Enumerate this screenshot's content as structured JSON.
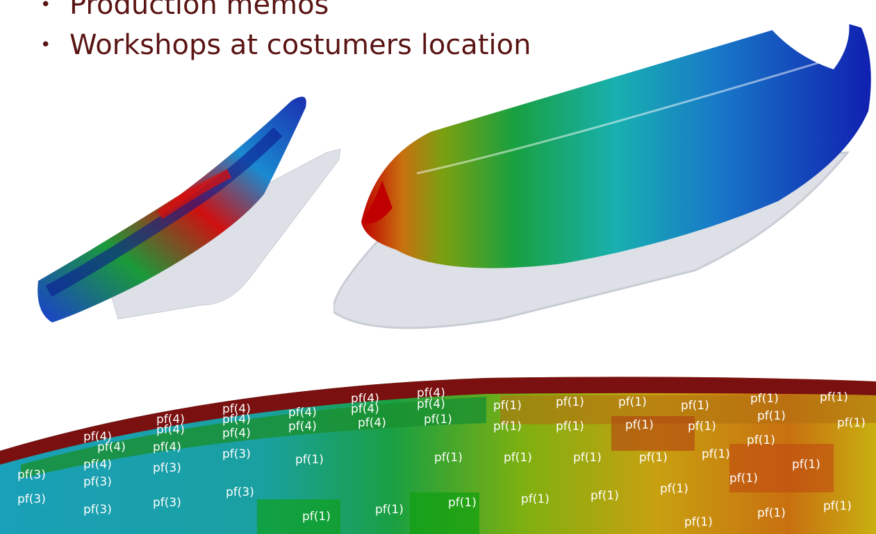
{
  "bullets": [
    {
      "text": "Production memos"
    },
    {
      "text": "Workshops at costumers location"
    }
  ],
  "mesh_labels": [
    "pf(1)",
    "pf(3)",
    "pf(4)"
  ],
  "colors": {
    "bullet_text": "#5a1414",
    "red": "#c00000",
    "green": "#1aa01a",
    "blue": "#1020b0",
    "cyan": "#18b0c8",
    "brown": "#c85a10"
  }
}
